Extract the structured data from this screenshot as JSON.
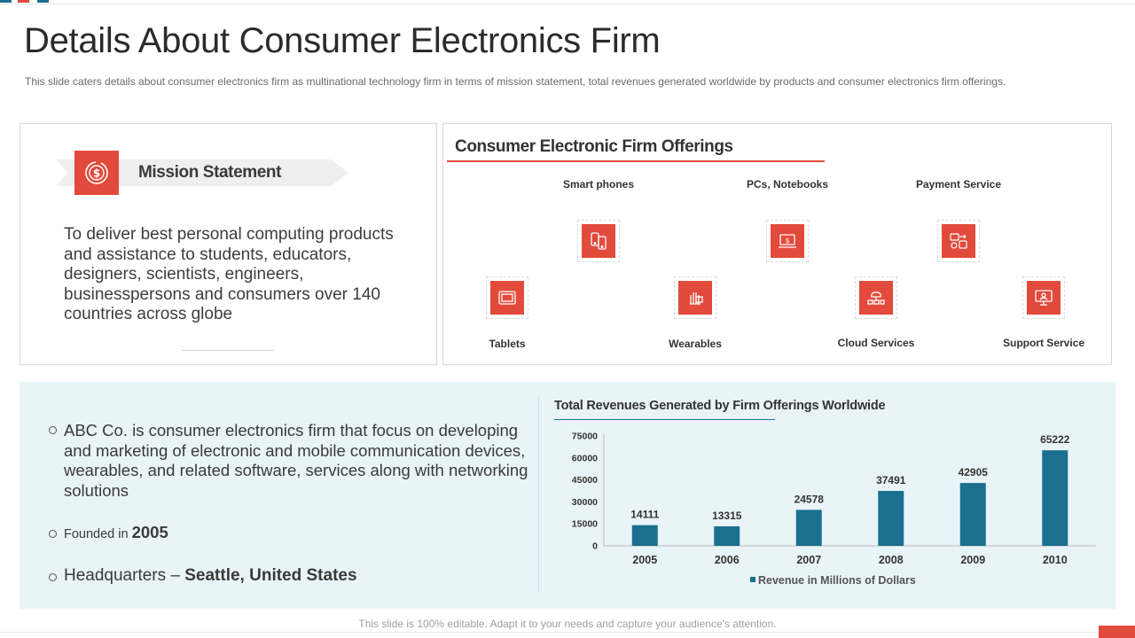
{
  "colors": {
    "accent": "#e24a3b",
    "bar": "#1b6f8f",
    "info_bg": "#e8f4f8"
  },
  "header": {
    "title": "Details About Consumer Electronics Firm",
    "subtitle": "This slide caters details about consumer electronics firm as multinational technology firm in terms of mission statement, total revenues  generated worldwide  by products and consumer electronics firm offerings."
  },
  "mission": {
    "label": "Mission Statement",
    "icon": "dollar-circle-icon",
    "text": "To deliver best personal computing products and assistance to students, educators, designers, scientists, engineers, businesspersons and consumers over 140 countries across globe"
  },
  "offerings": {
    "title": "Consumer Electronic Firm Offerings",
    "items": [
      {
        "label": "Smart phones",
        "icon": "smartphones-icon"
      },
      {
        "label": "PCs, Notebooks",
        "icon": "pc-notebook-icon"
      },
      {
        "label": "Payment Service",
        "icon": "payment-service-icon"
      },
      {
        "label": "Tablets",
        "icon": "tablet-icon"
      },
      {
        "label": "Wearables",
        "icon": "wearables-icon"
      },
      {
        "label": "Cloud Services",
        "icon": "cloud-services-icon"
      },
      {
        "label": "Support Service",
        "icon": "support-service-icon"
      }
    ]
  },
  "info": {
    "description": "ABC Co. is consumer electronics firm that focus on developing and marketing of electronic and mobile communication devices,  wearables, and related software, services along with networking solutions",
    "founded_prefix": "Founded in ",
    "founded_year": "2005",
    "hq_prefix": "Headquarters – ",
    "hq_value": "Seattle, United States"
  },
  "chart_data": {
    "type": "bar",
    "title": "Total Revenues Generated by Firm Offerings Worldwide",
    "categories": [
      "2005",
      "2006",
      "2007",
      "2008",
      "2009",
      "2010"
    ],
    "series": [
      {
        "name": "Revenue in Millions of Dollars",
        "values": [
          14111,
          13315,
          24578,
          37491,
          42905,
          65222
        ]
      }
    ],
    "ylim": [
      0,
      75000
    ],
    "yticks": [
      0,
      15000,
      30000,
      45000,
      60000,
      75000
    ],
    "xlabel": "",
    "ylabel": "",
    "legend": "bottom",
    "grid": false
  },
  "footer": {
    "text": "This slide is 100% editable. Adapt it to your needs and capture your audience's attention."
  }
}
